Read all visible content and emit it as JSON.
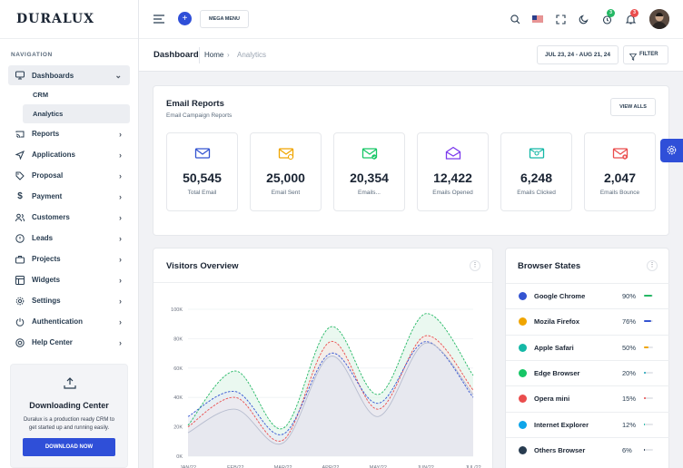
{
  "sidebar": {
    "logo": "DURALUX",
    "nav_caption": "NAVIGATION",
    "dashboards": "Dashboards",
    "sub_items": [
      "CRM",
      "Analytics"
    ],
    "items": [
      "Reports",
      "Applications",
      "Proposal",
      "Payment",
      "Customers",
      "Leads",
      "Projects",
      "Widgets",
      "Settings",
      "Authentication",
      "Help Center"
    ],
    "promo": {
      "title": "Downloading Center",
      "text": "Duralux is a production ready CRM to get started up and running easily.",
      "button": "DOWNLOAD NOW"
    }
  },
  "topbar": {
    "plus": "+",
    "mega_menu": "MEGA MENU",
    "badge_timer": "3",
    "badge_bell": "3"
  },
  "subbar": {
    "page_title": "Dashboard",
    "crumb_home": "Home",
    "crumb_current": "Analytics",
    "date_range": "JUL 23, 24 - AUG 21, 24",
    "filter": "FILTER"
  },
  "email_reports": {
    "title": "Email Reports",
    "subtitle": "Email Campaign Reports",
    "view_all": "VIEW ALLS",
    "stats": [
      {
        "value": "50,545",
        "label": "Total Email",
        "color": "#3454d1"
      },
      {
        "value": "25,000",
        "label": "Email Sent",
        "color": "#f0a500"
      },
      {
        "value": "20,354",
        "label": "Emails...",
        "color": "#17c666"
      },
      {
        "value": "12,422",
        "label": "Emails Opened",
        "color": "#7c3aed"
      },
      {
        "value": "6,248",
        "label": "Emails Clicked",
        "color": "#14b8a6"
      },
      {
        "value": "2,047",
        "label": "Emails Bounce",
        "color": "#ea4d4d"
      }
    ]
  },
  "visitors": {
    "title": "Visitors Overview",
    "chart_data": {
      "type": "area",
      "x": [
        "JAN/22",
        "FEB/22",
        "MAR/22",
        "APR/22",
        "MAY/22",
        "JUN/22",
        "JUL/22"
      ],
      "yticks": [
        "100K",
        "80K",
        "60K",
        "40K",
        "20K",
        "0K"
      ],
      "ylim": [
        0,
        100000
      ],
      "series": [
        {
          "color": "#25b865",
          "values": [
            21000,
            58000,
            19000,
            88000,
            42000,
            97000,
            55000
          ]
        },
        {
          "color": "#ea4d4d",
          "values": [
            20000,
            40000,
            11000,
            78000,
            32000,
            82000,
            45000
          ]
        },
        {
          "color": "#3454d1",
          "values": [
            27000,
            44000,
            15000,
            70000,
            36000,
            78000,
            40000
          ]
        },
        {
          "color": "#b7bdcf",
          "values": [
            16000,
            32000,
            9000,
            68000,
            27000,
            77000,
            42000
          ]
        }
      ]
    }
  },
  "browsers": {
    "title": "Browser States",
    "rows": [
      {
        "name": "Google Chrome",
        "pct": "90%",
        "fill": 0.9,
        "color": "#25b865",
        "icon_color": "#3454d1"
      },
      {
        "name": "Mozila Firefox",
        "pct": "76%",
        "fill": 0.76,
        "color": "#3454d1",
        "icon_color": "#f0a500"
      },
      {
        "name": "Apple Safari",
        "pct": "50%",
        "fill": 0.5,
        "color": "#f0a500",
        "icon_color": "#14b8a6"
      },
      {
        "name": "Edge Browser",
        "pct": "20%",
        "fill": 0.2,
        "color": "#17a2b8",
        "icon_color": "#17c666"
      },
      {
        "name": "Opera mini",
        "pct": "15%",
        "fill": 0.15,
        "color": "#ea4d4d",
        "icon_color": "#ea4d4d"
      },
      {
        "name": "Internet Explorer",
        "pct": "12%",
        "fill": 0.12,
        "color": "#14b8a6",
        "icon_color": "#0ea5e9"
      },
      {
        "name": "Others Browser",
        "pct": "6%",
        "fill": 0.06,
        "color": "#283c50",
        "icon_color": "#283c50"
      }
    ]
  }
}
